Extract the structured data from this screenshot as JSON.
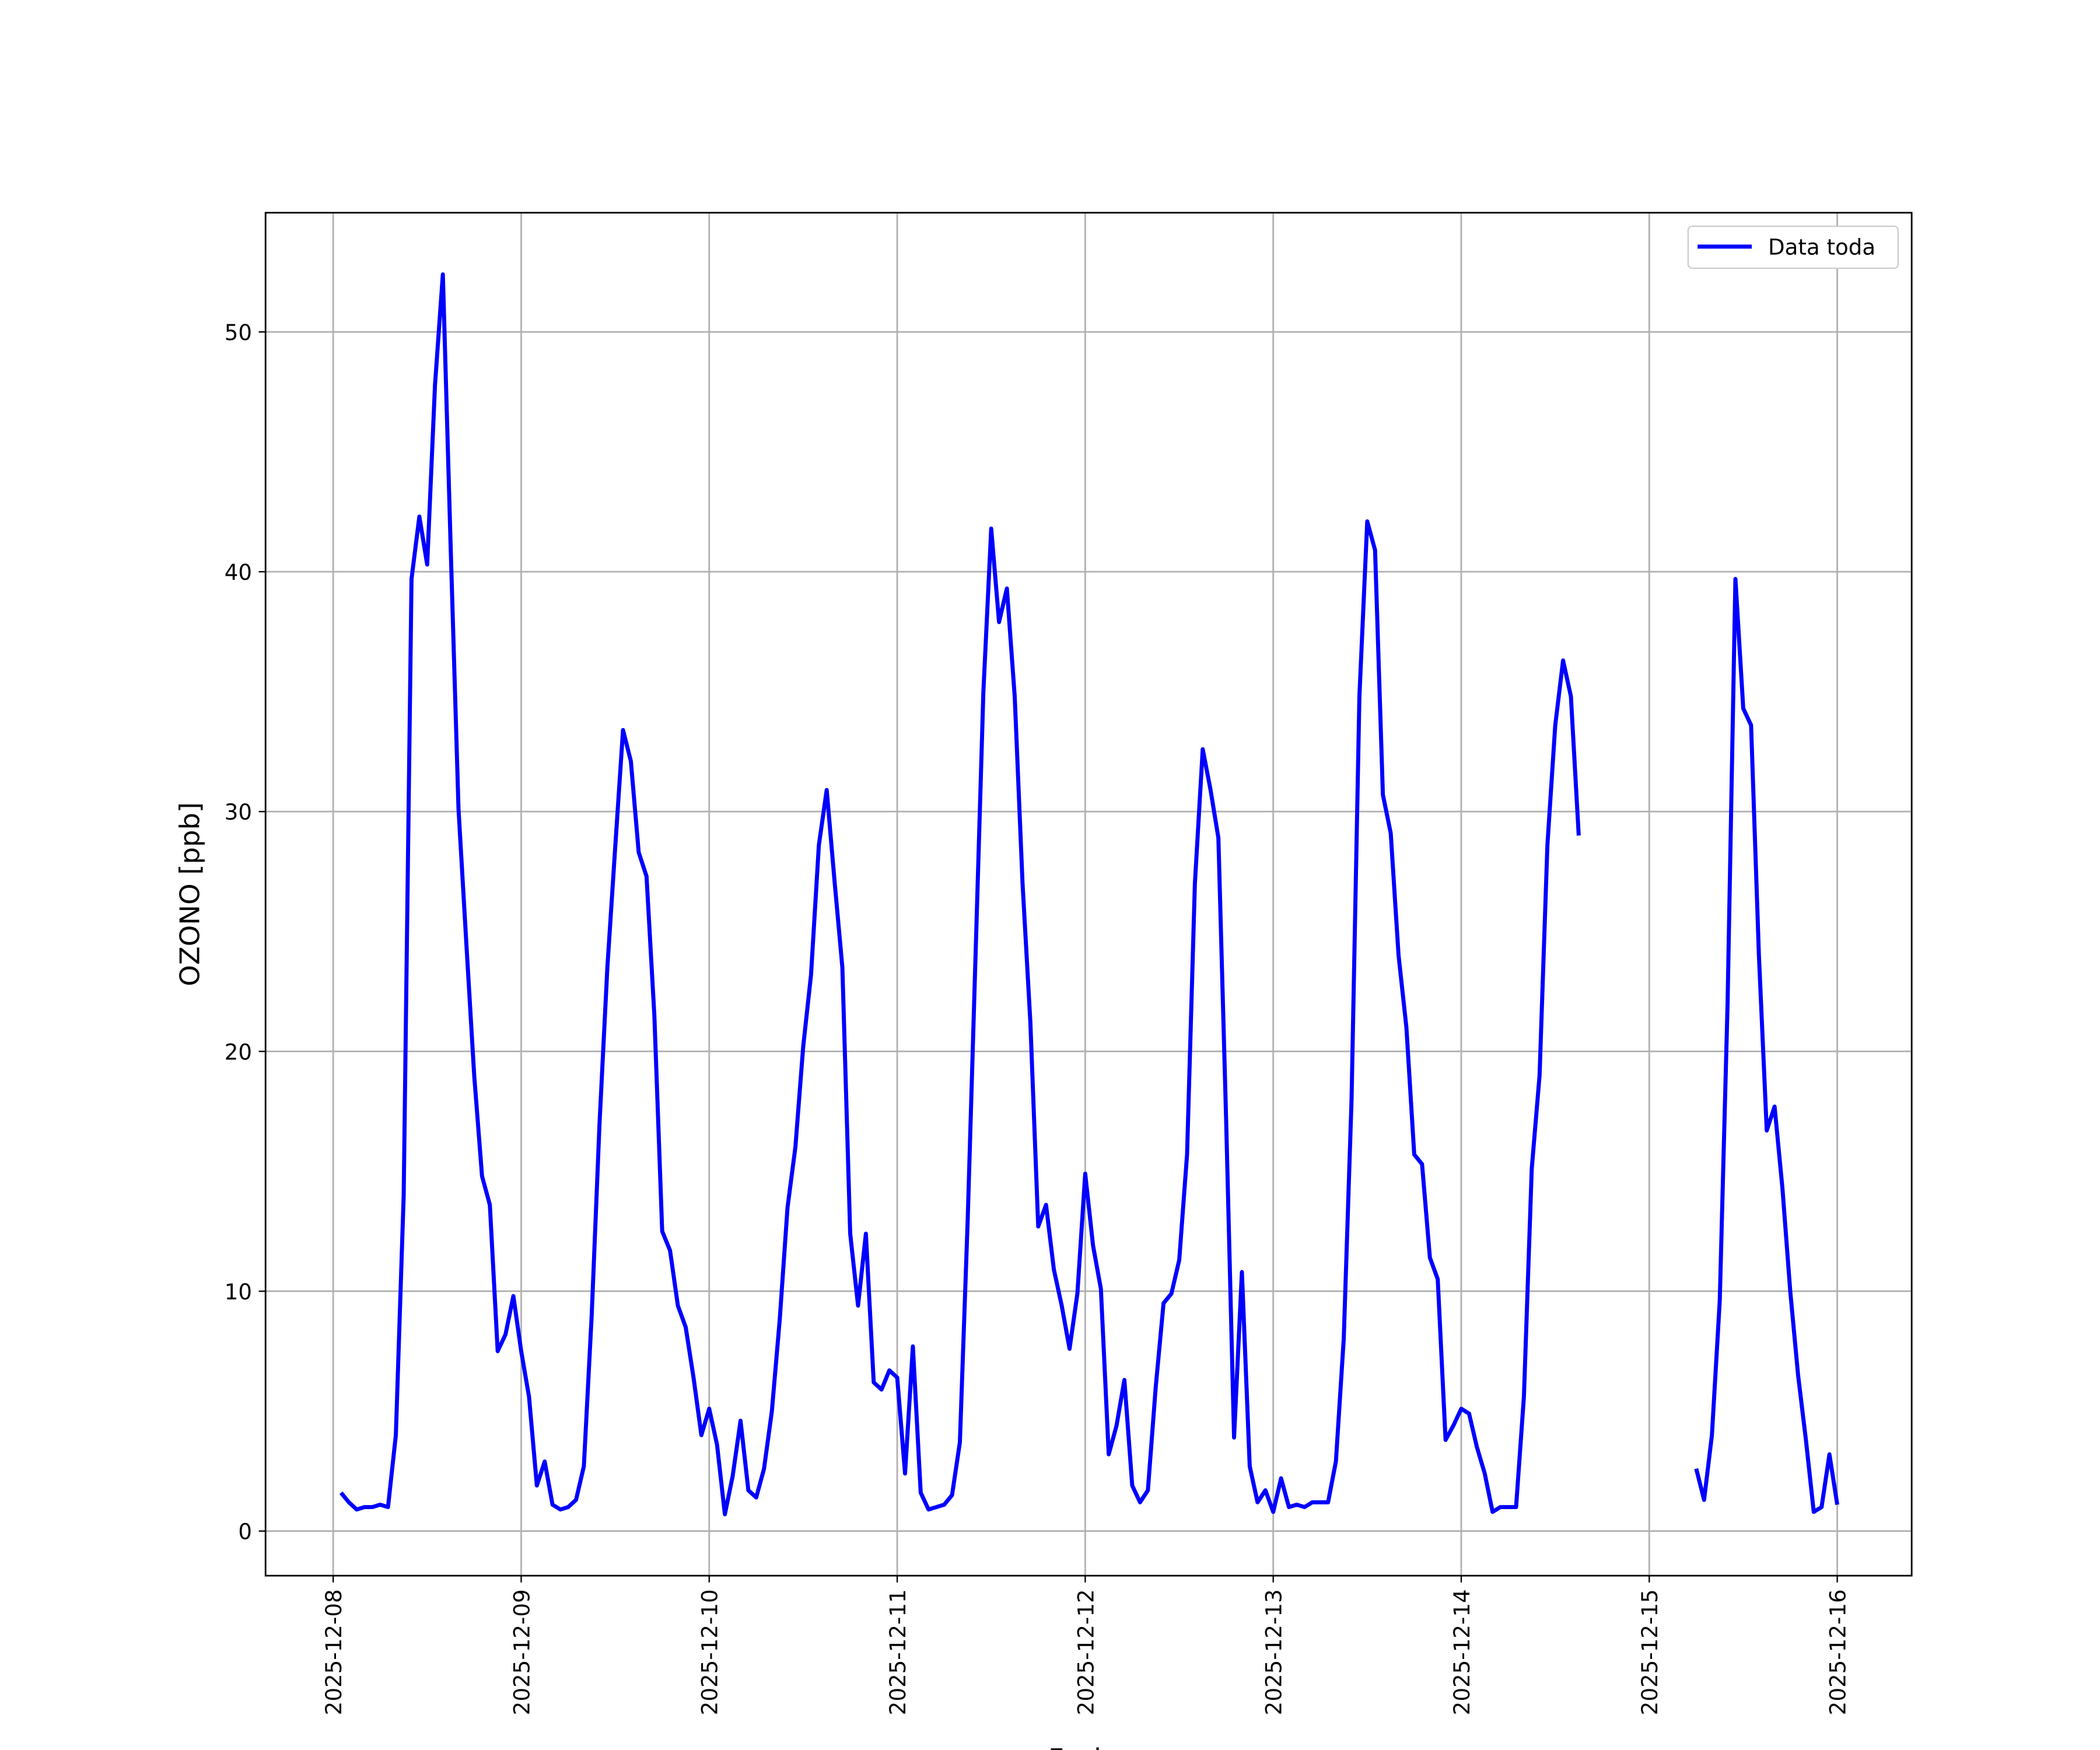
{
  "chart_data": {
    "type": "line",
    "x_label": "Fecha",
    "y_label": "OZONO [ppb]",
    "x": [
      "2025-12-08 01:00",
      "2025-12-08 02:00",
      "2025-12-08 03:00",
      "2025-12-08 04:00",
      "2025-12-08 05:00",
      "2025-12-08 06:00",
      "2025-12-08 07:00",
      "2025-12-08 08:00",
      "2025-12-08 09:00",
      "2025-12-08 10:00",
      "2025-12-08 11:00",
      "2025-12-08 12:00",
      "2025-12-08 13:00",
      "2025-12-08 14:00",
      "2025-12-08 15:00",
      "2025-12-08 16:00",
      "2025-12-08 17:00",
      "2025-12-08 18:00",
      "2025-12-08 19:00",
      "2025-12-08 20:00",
      "2025-12-08 21:00",
      "2025-12-08 22:00",
      "2025-12-08 23:00",
      "2025-12-09 00:00",
      "2025-12-09 01:00",
      "2025-12-09 02:00",
      "2025-12-09 03:00",
      "2025-12-09 04:00",
      "2025-12-09 05:00",
      "2025-12-09 06:00",
      "2025-12-09 07:00",
      "2025-12-09 08:00",
      "2025-12-09 09:00",
      "2025-12-09 10:00",
      "2025-12-09 11:00",
      "2025-12-09 12:00",
      "2025-12-09 13:00",
      "2025-12-09 14:00",
      "2025-12-09 15:00",
      "2025-12-09 16:00",
      "2025-12-09 17:00",
      "2025-12-09 18:00",
      "2025-12-09 19:00",
      "2025-12-09 20:00",
      "2025-12-09 21:00",
      "2025-12-09 22:00",
      "2025-12-09 23:00",
      "2025-12-10 00:00",
      "2025-12-10 01:00",
      "2025-12-10 02:00",
      "2025-12-10 03:00",
      "2025-12-10 04:00",
      "2025-12-10 05:00",
      "2025-12-10 06:00",
      "2025-12-10 07:00",
      "2025-12-10 08:00",
      "2025-12-10 09:00",
      "2025-12-10 10:00",
      "2025-12-10 11:00",
      "2025-12-10 12:00",
      "2025-12-10 13:00",
      "2025-12-10 14:00",
      "2025-12-10 15:00",
      "2025-12-10 16:00",
      "2025-12-10 17:00",
      "2025-12-10 18:00",
      "2025-12-10 19:00",
      "2025-12-10 20:00",
      "2025-12-10 21:00",
      "2025-12-10 22:00",
      "2025-12-10 23:00",
      "2025-12-11 00:00",
      "2025-12-11 01:00",
      "2025-12-11 02:00",
      "2025-12-11 03:00",
      "2025-12-11 04:00",
      "2025-12-11 05:00",
      "2025-12-11 06:00",
      "2025-12-11 07:00",
      "2025-12-11 08:00",
      "2025-12-11 09:00",
      "2025-12-11 10:00",
      "2025-12-11 11:00",
      "2025-12-11 12:00",
      "2025-12-11 13:00",
      "2025-12-11 14:00",
      "2025-12-11 15:00",
      "2025-12-11 16:00",
      "2025-12-11 17:00",
      "2025-12-11 18:00",
      "2025-12-11 19:00",
      "2025-12-11 20:00",
      "2025-12-11 21:00",
      "2025-12-11 22:00",
      "2025-12-11 23:00",
      "2025-12-12 00:00",
      "2025-12-12 01:00",
      "2025-12-12 02:00",
      "2025-12-12 03:00",
      "2025-12-12 04:00",
      "2025-12-12 05:00",
      "2025-12-12 06:00",
      "2025-12-12 07:00",
      "2025-12-12 08:00",
      "2025-12-12 09:00",
      "2025-12-12 10:00",
      "2025-12-12 11:00",
      "2025-12-12 12:00",
      "2025-12-12 13:00",
      "2025-12-12 14:00",
      "2025-12-12 15:00",
      "2025-12-12 16:00",
      "2025-12-12 17:00",
      "2025-12-12 18:00",
      "2025-12-12 19:00",
      "2025-12-12 20:00",
      "2025-12-12 21:00",
      "2025-12-12 22:00",
      "2025-12-12 23:00",
      "2025-12-13 00:00",
      "2025-12-13 01:00",
      "2025-12-13 02:00",
      "2025-12-13 03:00",
      "2025-12-13 04:00",
      "2025-12-13 05:00",
      "2025-12-13 06:00",
      "2025-12-13 07:00",
      "2025-12-13 08:00",
      "2025-12-13 09:00",
      "2025-12-13 10:00",
      "2025-12-13 11:00",
      "2025-12-13 12:00",
      "2025-12-13 13:00",
      "2025-12-13 14:00",
      "2025-12-13 15:00",
      "2025-12-13 16:00",
      "2025-12-13 17:00",
      "2025-12-13 18:00",
      "2025-12-13 19:00",
      "2025-12-13 20:00",
      "2025-12-13 21:00",
      "2025-12-13 22:00",
      "2025-12-13 23:00",
      "2025-12-14 00:00",
      "2025-12-14 01:00",
      "2025-12-14 02:00",
      "2025-12-14 03:00",
      "2025-12-14 04:00",
      "2025-12-14 05:00",
      "2025-12-14 06:00",
      "2025-12-14 07:00",
      "2025-12-14 08:00",
      "2025-12-14 09:00",
      "2025-12-14 10:00",
      "2025-12-14 11:00",
      "2025-12-14 12:00",
      "2025-12-14 13:00",
      "2025-12-14 14:00",
      "2025-12-14 15:00",
      "2025-12-14 16:00",
      "2025-12-14 17:00",
      "2025-12-14 18:00",
      "2025-12-14 19:00",
      "2025-12-14 20:00",
      "2025-12-14 21:00",
      "2025-12-14 22:00",
      "2025-12-14 23:00",
      "2025-12-15 00:00",
      "2025-12-15 01:00",
      "2025-12-15 02:00",
      "2025-12-15 03:00",
      "2025-12-15 04:00",
      "2025-12-15 05:00",
      "2025-12-15 06:00",
      "2025-12-15 07:00",
      "2025-12-15 08:00",
      "2025-12-15 09:00",
      "2025-12-15 10:00",
      "2025-12-15 11:00",
      "2025-12-15 12:00",
      "2025-12-15 13:00",
      "2025-12-15 14:00",
      "2025-12-15 15:00",
      "2025-12-15 16:00",
      "2025-12-15 17:00",
      "2025-12-15 18:00",
      "2025-12-15 19:00",
      "2025-12-15 20:00",
      "2025-12-15 21:00",
      "2025-12-15 22:00",
      "2025-12-15 23:00",
      "2025-12-16 00:00"
    ],
    "series": [
      {
        "name": "Data toda",
        "color": "#0000ff",
        "values": [
          1.6,
          1.2,
          0.9,
          1.0,
          1.0,
          1.1,
          1.0,
          4.0,
          14,
          39.7,
          42.3,
          40.3,
          47.8,
          52.4,
          41,
          30.1,
          24.5,
          19.0,
          14.8,
          13.6,
          7.5,
          8.2,
          9.8,
          7.5,
          5.6,
          1.9,
          2.9,
          1.1,
          0.9,
          1.0,
          1.3,
          2.7,
          9.0,
          17,
          23.5,
          28.5,
          33.4,
          32.1,
          28.3,
          27.3,
          21.5,
          12.5,
          11.7,
          9.4,
          8.5,
          6.4,
          4.0,
          5.1,
          3.6,
          0.7,
          2.3,
          4.6,
          1.7,
          1.4,
          2.6,
          5.0,
          8.8,
          13.5,
          16.0,
          20.2,
          23.2,
          28.6,
          30.9,
          27.1,
          23.5,
          12.4,
          9.4,
          12.4,
          6.2,
          5.9,
          6.7,
          6.4,
          2.4,
          7.7,
          1.6,
          0.9,
          1.0,
          1.1,
          1.5,
          3.7,
          13,
          24,
          35,
          41.8,
          37.9,
          39.3,
          34.8,
          27,
          21.2,
          12.7,
          13.6,
          10.9,
          9.4,
          7.6,
          9.9,
          14.9,
          11.9,
          10.1,
          3.2,
          4.4,
          6.3,
          1.9,
          1.2,
          1.7,
          6.0,
          9.5,
          9.9,
          11.3,
          15.7,
          27,
          32.6,
          30.9,
          28.9,
          17,
          3.9,
          10.8,
          2.7,
          1.2,
          1.7,
          0.8,
          2.2,
          1.0,
          1.1,
          1.0,
          1.2,
          1.2,
          1.2,
          2.9,
          8.0,
          18,
          34.8,
          42.1,
          40.9,
          30.7,
          29.1,
          24,
          21,
          15.7,
          15.3,
          11.4,
          10.5,
          3.8,
          4.4,
          5.1,
          4.9,
          3.5,
          2.4,
          0.8,
          1.0,
          1.0,
          1.0,
          5.6,
          15.1,
          19,
          28.6,
          33.6,
          36.3,
          34.8,
          29.0,
          null,
          null,
          null,
          null,
          null,
          null,
          null,
          null,
          null,
          null,
          null,
          null,
          null,
          null,
          2.6,
          1.3,
          4.0,
          9.6,
          22,
          39.7,
          34.3,
          33.6,
          24,
          16.7,
          17.7,
          14.3,
          10,
          6.5,
          3.8,
          0.8,
          1.0,
          3.2,
          1.1
        ]
      }
    ],
    "xlim": [
      "2025-12-07 15:22",
      "2025-12-16 09:30"
    ],
    "xticks": [
      "2025-12-08",
      "2025-12-09",
      "2025-12-10",
      "2025-12-11",
      "2025-12-12",
      "2025-12-13",
      "2025-12-14",
      "2025-12-15",
      "2025-12-16"
    ],
    "ylim": [
      -1.86,
      54.97
    ],
    "yticks": [
      0,
      10,
      20,
      30,
      40,
      50
    ],
    "grid": true,
    "legend": "upper right"
  }
}
